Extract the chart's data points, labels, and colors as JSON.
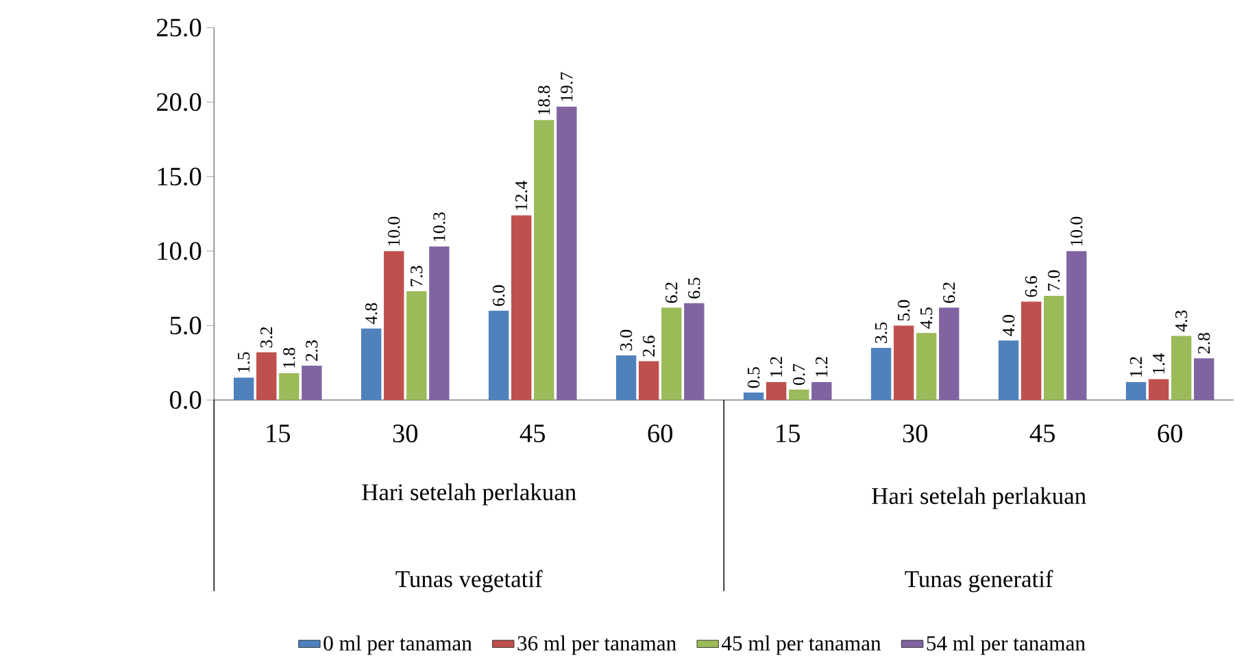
{
  "chart_data": {
    "type": "bar",
    "categories": [
      "15",
      "30",
      "45",
      "60",
      "15",
      "30",
      "45",
      "60"
    ],
    "annotations": [
      "Hari setelah perlakuan",
      "Hari setelah perlakuan",
      "Tunas vegetatif",
      "Tunas generatif"
    ],
    "ylim": [
      0,
      25
    ],
    "yticks": [
      {
        "value": 0,
        "label": "0.0"
      },
      {
        "value": 5,
        "label": "5.0"
      },
      {
        "value": 10,
        "label": "10.0"
      },
      {
        "value": 15,
        "label": "15.0"
      },
      {
        "value": 20,
        "label": "20.0"
      },
      {
        "value": 25,
        "label": "25.0"
      }
    ],
    "legend": "bottom",
    "grid": false,
    "series": [
      {
        "name": "0 ml per tanaman",
        "color": "#4f81bd",
        "values": [
          1.5,
          4.8,
          6.0,
          3.0,
          0.5,
          3.5,
          4.0,
          1.2
        ],
        "value_labels": [
          "1.5",
          "4.8",
          "6.0",
          "3.0",
          "0.5",
          "3.5",
          "4.0",
          "1.2"
        ]
      },
      {
        "name": "36 ml per tanaman",
        "color": "#c0504d",
        "values": [
          3.2,
          10.0,
          12.4,
          2.6,
          1.2,
          5.0,
          6.6,
          1.4
        ],
        "value_labels": [
          "3.2",
          "10.0",
          "12.4",
          "2.6",
          "1.2",
          "5.0",
          "6.6",
          "1.4"
        ]
      },
      {
        "name": "45 ml per tanaman",
        "color": "#9bbb59",
        "values": [
          1.8,
          7.3,
          18.8,
          6.2,
          0.7,
          4.5,
          7.0,
          4.3
        ],
        "value_labels": [
          "1.8",
          "7.3",
          "18.8",
          "6.2",
          "0.7",
          "4.5",
          "7.0",
          "4.3"
        ]
      },
      {
        "name": "54 ml per tanaman",
        "color": "#8064a2",
        "values": [
          2.3,
          10.3,
          19.7,
          6.5,
          1.2,
          6.2,
          10.0,
          2.8
        ],
        "value_labels": [
          "2.3",
          "10.3",
          "19.7",
          "6.5",
          "1.2",
          "6.2",
          "10.0",
          "2.8"
        ]
      }
    ]
  }
}
